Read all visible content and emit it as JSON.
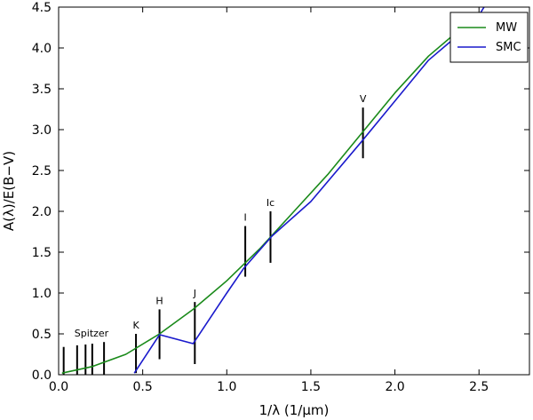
{
  "chart_data": {
    "type": "line",
    "xlabel": "1/λ (1/μm)",
    "ylabel": "A(λ)/E(B−V)",
    "xlim": [
      0.0,
      2.8
    ],
    "ylim": [
      0.0,
      4.5
    ],
    "x_ticks": [
      "0.0",
      "0.5",
      "1.0",
      "1.5",
      "2.0",
      "2.5"
    ],
    "x_tick_values": [
      0.0,
      0.5,
      1.0,
      1.5,
      2.0,
      2.5
    ],
    "y_ticks": [
      "0.0",
      "0.5",
      "1.0",
      "1.5",
      "2.0",
      "2.5",
      "3.0",
      "3.5",
      "4.0",
      "4.5"
    ],
    "y_tick_values": [
      0.0,
      0.5,
      1.0,
      1.5,
      2.0,
      2.5,
      3.0,
      3.5,
      4.0,
      4.5
    ],
    "grid": false,
    "legend": {
      "placement": "top-right",
      "entries": [
        "MW",
        "SMC"
      ]
    },
    "series": [
      {
        "name": "MW",
        "color": "#1a8a1a",
        "points": [
          [
            0.02,
            0.02
          ],
          [
            0.2,
            0.1
          ],
          [
            0.4,
            0.25
          ],
          [
            0.6,
            0.5
          ],
          [
            0.8,
            0.8
          ],
          [
            1.0,
            1.15
          ],
          [
            1.2,
            1.55
          ],
          [
            1.4,
            2.0
          ],
          [
            1.6,
            2.45
          ],
          [
            1.8,
            2.95
          ],
          [
            2.0,
            3.45
          ],
          [
            2.2,
            3.9
          ],
          [
            2.4,
            4.25
          ],
          [
            2.5,
            4.4
          ]
        ]
      },
      {
        "name": "SMC",
        "color": "#1a1acc",
        "points": [
          [
            0.45,
            0.02
          ],
          [
            0.6,
            0.49
          ],
          [
            0.8,
            0.38
          ],
          [
            1.0,
            1.0
          ],
          [
            1.1,
            1.3
          ],
          [
            1.27,
            1.7
          ],
          [
            1.5,
            2.12
          ],
          [
            1.8,
            2.85
          ],
          [
            2.0,
            3.35
          ],
          [
            2.2,
            3.85
          ],
          [
            2.4,
            4.2
          ],
          [
            2.5,
            4.4
          ],
          [
            2.53,
            4.5
          ]
        ]
      }
    ],
    "bands": [
      {
        "label": "",
        "x": 0.03,
        "ylow": 0.0,
        "yhigh": 0.34
      },
      {
        "label": "",
        "x": 0.11,
        "ylow": 0.0,
        "yhigh": 0.36
      },
      {
        "label": "",
        "x": 0.16,
        "ylow": 0.0,
        "yhigh": 0.37
      },
      {
        "label": "",
        "x": 0.2,
        "ylow": 0.0,
        "yhigh": 0.38
      },
      {
        "label": "",
        "x": 0.27,
        "ylow": 0.0,
        "yhigh": 0.4
      },
      {
        "label": "K",
        "x": 0.46,
        "ylow": 0.02,
        "yhigh": 0.5
      },
      {
        "label": "H",
        "x": 0.6,
        "ylow": 0.19,
        "yhigh": 0.8
      },
      {
        "label": "J",
        "x": 0.81,
        "ylow": 0.13,
        "yhigh": 0.89
      },
      {
        "label": "I",
        "x": 1.11,
        "ylow": 1.2,
        "yhigh": 1.82
      },
      {
        "label": "Ic",
        "x": 1.26,
        "ylow": 1.37,
        "yhigh": 2.0
      },
      {
        "label": "V",
        "x": 1.81,
        "ylow": 2.65,
        "yhigh": 3.27
      }
    ],
    "annotations": [
      "Spitzer"
    ]
  }
}
